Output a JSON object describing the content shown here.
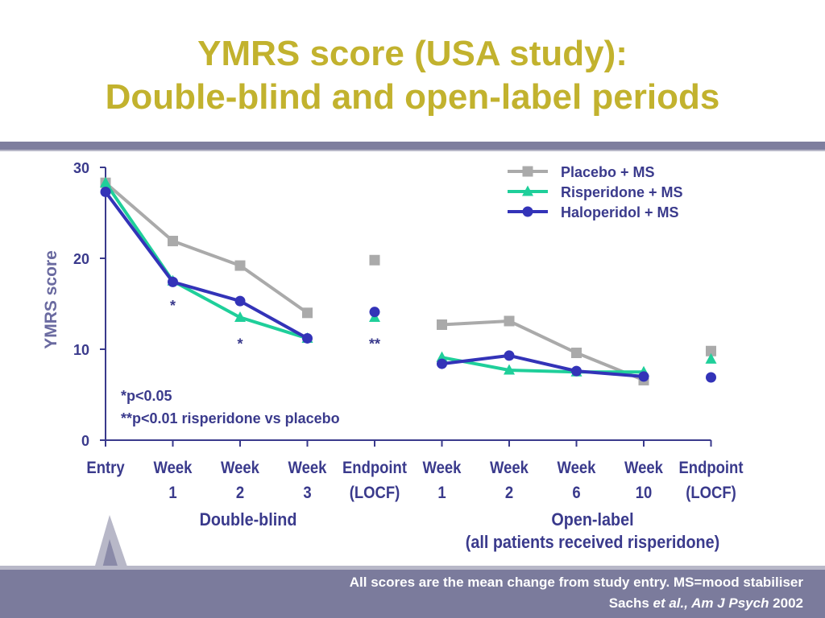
{
  "slide": {
    "title_line1": "YMRS score (USA study):",
    "title_line2": "Double-blind and open-label periods",
    "footer_line1": "All scores are the mean change from study entry. MS=mood stabiliser",
    "footer_author": "Sachs ",
    "footer_etal": "et al., Am J Psych",
    "footer_year": " 2002",
    "colors": {
      "title": "#c2b22e",
      "band": "#7b7b9c"
    }
  },
  "chart_data": {
    "type": "line",
    "ylabel": "YMRS score",
    "ylim": [
      0,
      30
    ],
    "yticks": [
      "0",
      "10",
      "20",
      "30"
    ],
    "categories": [
      [
        "Entry"
      ],
      [
        "Week",
        "1"
      ],
      [
        "Week",
        "2"
      ],
      [
        "Week",
        "3"
      ],
      [
        "Endpoint",
        "(LOCF)"
      ],
      [
        "Week",
        "1"
      ],
      [
        "Week",
        "2"
      ],
      [
        "Week",
        "6"
      ],
      [
        "Week",
        "10"
      ],
      [
        "Endpoint",
        "(LOCF)"
      ]
    ],
    "groups": [
      {
        "label": [
          "Double-blind"
        ]
      },
      {
        "label": [
          "Open-label",
          "(all patients received risperidone)"
        ]
      }
    ],
    "series": [
      {
        "name": "Placebo + MS",
        "color": "#aaaaaa",
        "marker": "square",
        "values": [
          28.3,
          21.9,
          19.2,
          14.0,
          19.8,
          12.7,
          13.1,
          9.6,
          6.6,
          9.8
        ]
      },
      {
        "name": "Risperidone + MS",
        "color": "#1fcf9a",
        "marker": "triangle",
        "values": [
          28.3,
          17.5,
          13.5,
          11.2,
          13.5,
          9.1,
          7.7,
          7.5,
          7.5,
          8.9
        ]
      },
      {
        "name": "Haloperidol + MS",
        "color": "#3333b8",
        "marker": "circle",
        "values": [
          27.3,
          17.4,
          15.3,
          11.2,
          14.1,
          8.4,
          9.3,
          7.6,
          7.0,
          6.9
        ]
      }
    ],
    "connected_segments": [
      [
        0,
        3
      ],
      [
        5,
        8
      ]
    ],
    "annotations": [
      {
        "text": "*",
        "category_index": 1,
        "y": 15.5
      },
      {
        "text": "*",
        "category_index": 2,
        "y": 11.3
      },
      {
        "text": "**",
        "category_index": 4,
        "y": 11.3
      }
    ],
    "notes": [
      "*p<0.05",
      "**p<0.01 risperidone vs placebo"
    ],
    "legend_position": "top-right",
    "grid": false
  }
}
